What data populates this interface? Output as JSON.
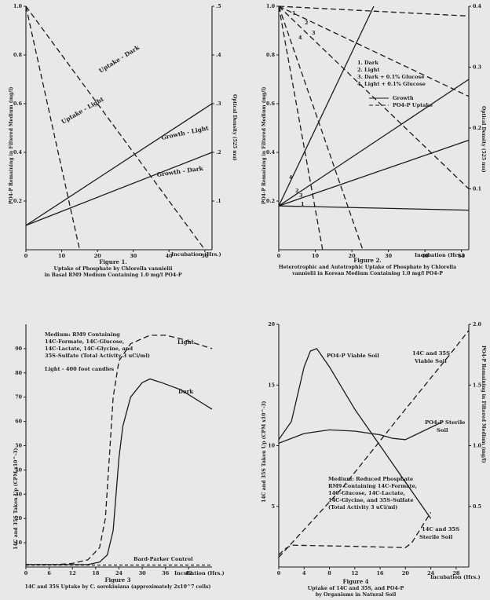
{
  "chart_data": [
    {
      "type": "line",
      "title": "Figure 1.",
      "caption": [
        "Uptake of Phosphate by Chlorella vannielii",
        "in Basal RM9 Medium Containing 1.0 mg/l PO4-P"
      ],
      "xlabel": "Incubation (Hrs.)",
      "ylabel_left": "PO4-P Remaining in Filtered Medium (mg/l)",
      "ylabel_right": "Optical Density (525 mu)",
      "xlim": [
        0,
        52
      ],
      "ylim_left": [
        0,
        1.0
      ],
      "ylim_right": [
        0,
        0.5
      ],
      "x_ticks": [
        "0",
        "10",
        "20",
        "30",
        "40",
        "50"
      ],
      "y_ticks_left": [
        "0.2",
        "0.4",
        "0.6",
        "0.8",
        "1.0"
      ],
      "y_ticks_right": [
        ".1",
        ".2",
        ".3",
        ".4",
        ".5"
      ],
      "series": [
        {
          "name": "Uptake - Dark",
          "style": "dashed",
          "axis": "left",
          "points": [
            [
              0,
              1.0
            ],
            [
              50,
              0.0
            ]
          ]
        },
        {
          "name": "Uptake - Light",
          "style": "dashed",
          "axis": "left",
          "points": [
            [
              0,
              1.0
            ],
            [
              15,
              0.0
            ]
          ]
        },
        {
          "name": "Growth - Light",
          "style": "solid",
          "axis": "right",
          "points": [
            [
              0,
              0.05
            ],
            [
              52,
              0.3
            ]
          ]
        },
        {
          "name": "Growth - Dark",
          "style": "solid",
          "axis": "right",
          "points": [
            [
              0,
              0.05
            ],
            [
              52,
              0.2
            ]
          ]
        }
      ]
    },
    {
      "type": "line",
      "title": "Figure 2.",
      "caption": [
        "Heterotrophic and Autotrophic Uptake of Phosphate by Chlorella",
        "vannielii in Korean Medium Containing 1.0 mg/l PO4-P"
      ],
      "xlabel": "Incubation (Hrs.)",
      "ylabel_left": "PO4-P Remaining in Filtered Medium (mg/l)",
      "ylabel_right": "Optical Density (525 mu)",
      "xlim": [
        0,
        52
      ],
      "ylim_left": [
        0,
        1.0
      ],
      "ylim_right": [
        0,
        0.4
      ],
      "x_ticks": [
        "0",
        "10",
        "20",
        "30",
        "40",
        "50"
      ],
      "y_ticks_left": [
        "0.2",
        "0.4",
        "0.6",
        "0.8",
        "1.0"
      ],
      "y_ticks_right": [
        "0.1",
        "0.2",
        "0.3",
        "0.4"
      ],
      "legend_items": [
        "1.  Dark",
        "2.  Light",
        "3.  Dark + 0.1% Glucose",
        "4.  Light + 0.1% Glucose"
      ],
      "legend_styles": [
        "Growth",
        "PO4-P Uptake"
      ],
      "series": [
        {
          "name": "1",
          "style": "solid",
          "axis": "right",
          "points": [
            [
              0,
              0.072
            ],
            [
              52,
              0.065
            ]
          ]
        },
        {
          "name": "2",
          "style": "solid",
          "axis": "right",
          "points": [
            [
              0,
              0.072
            ],
            [
              52,
              0.18
            ]
          ]
        },
        {
          "name": "3",
          "style": "solid",
          "axis": "right",
          "points": [
            [
              0,
              0.072
            ],
            [
              52,
              0.28
            ]
          ]
        },
        {
          "name": "4",
          "style": "solid",
          "axis": "right",
          "points": [
            [
              0,
              0.072
            ],
            [
              26,
              0.41
            ]
          ]
        },
        {
          "name": "1",
          "style": "dashed",
          "axis": "left",
          "points": [
            [
              0,
              1.0
            ],
            [
              52,
              0.96
            ]
          ]
        },
        {
          "name": "2",
          "style": "dashed",
          "axis": "left",
          "points": [
            [
              0,
              1.0
            ],
            [
              52,
              0.63
            ]
          ]
        },
        {
          "name": "3",
          "style": "dashed",
          "axis": "left",
          "points": [
            [
              0,
              1.0
            ],
            [
              52,
              0.25
            ]
          ]
        },
        {
          "name": "4",
          "style": "dashed",
          "axis": "left",
          "points": [
            [
              0,
              1.0
            ],
            [
              23,
              0.0
            ]
          ]
        },
        {
          "name": "4b",
          "style": "dashed",
          "axis": "left",
          "points": [
            [
              0,
              1.0
            ],
            [
              12,
              0.0
            ]
          ]
        }
      ],
      "point_labels": [
        "1",
        "2",
        "3",
        "4"
      ]
    },
    {
      "type": "line",
      "title": "Figure 3",
      "caption": [
        "14C and 35S Uptake by C. sorokiniana (approximately 2x10^7 cells)"
      ],
      "xlabel": "Incubation (Hrs.)",
      "ylabel": "14C and 35S Taken Up (CPM x10^-3)",
      "xlim": [
        0,
        48
      ],
      "ylim": [
        0,
        100
      ],
      "x_ticks": [
        "0",
        "6",
        "12",
        "18",
        "24",
        "30",
        "36",
        "42"
      ],
      "y_ticks": [
        "10",
        "20",
        "30",
        "40",
        "50",
        "60",
        "70",
        "80",
        "90"
      ],
      "annotations": [
        "Medium:  RM9 Containing",
        "14C-Formate, 14C-Glucose,",
        "14C-Lactate, 14C-Glycine, and",
        "35S-Sulfate (Total Activity 3 uCi/ml)",
        "Light - 400 foot candles"
      ],
      "series": [
        {
          "name": "Light",
          "style": "dashed",
          "points": [
            [
              0,
              1
            ],
            [
              8,
              1
            ],
            [
              12,
              1.5
            ],
            [
              16,
              3
            ],
            [
              19,
              8
            ],
            [
              20.5,
              20
            ],
            [
              21.5,
              45
            ],
            [
              22.5,
              70
            ],
            [
              24,
              85
            ],
            [
              27,
              92
            ],
            [
              32,
              95.5
            ],
            [
              36,
              95.5
            ],
            [
              40,
              94
            ],
            [
              44,
              92
            ],
            [
              48,
              90
            ]
          ]
        },
        {
          "name": "Dark",
          "style": "solid",
          "points": [
            [
              0,
              1
            ],
            [
              16,
              1
            ],
            [
              19,
              2
            ],
            [
              21,
              5
            ],
            [
              22.5,
              15
            ],
            [
              24,
              45
            ],
            [
              25,
              58
            ],
            [
              27,
              70
            ],
            [
              30,
              76
            ],
            [
              32,
              77.5
            ],
            [
              35,
              76
            ],
            [
              40,
              73
            ],
            [
              44,
              69
            ],
            [
              48,
              65
            ]
          ]
        },
        {
          "name": "Bard-Parker Control",
          "style": "dashed",
          "points": [
            [
              0,
              0.8
            ],
            [
              48,
              0.8
            ]
          ]
        }
      ]
    },
    {
      "type": "line",
      "title": "Figure 4",
      "caption": [
        "Uptake of 14C and 35S, and PO4-P",
        "by Organisms in Natural Soil"
      ],
      "xlabel": "Incubation (Hrs.)",
      "ylabel_left": "14C and 35S Taken Up (CPM x10^-3)",
      "ylabel_right": "PO4-P Remaining in Filtered Medium (mg/l)",
      "xlim": [
        0,
        30
      ],
      "ylim_left": [
        0,
        20
      ],
      "ylim_right": [
        0,
        2.0
      ],
      "x_ticks": [
        "0",
        "4",
        "8",
        "12",
        "16",
        "20",
        "24",
        "28"
      ],
      "y_ticks_left": [
        "5",
        "10",
        "15",
        "20"
      ],
      "y_ticks_right": [
        "0.5",
        "1.0",
        "1.5",
        "2.0"
      ],
      "annotations": [
        "Medium:  Reduced Phosphate",
        "RM9 Containing 14C-Formate,",
        "14C-Glucose, 14C-Lactate,",
        "14C-Glycine, and 35S-Sulfate",
        "(Total Activity 3 uCi/ml)"
      ],
      "series": [
        {
          "name": "PO4-P Viable Soil",
          "style": "solid",
          "points": [
            [
              0,
              10.5
            ],
            [
              2,
              12
            ],
            [
              4,
              16.5
            ],
            [
              5,
              17.8
            ],
            [
              6,
              18
            ],
            [
              8,
              16.5
            ],
            [
              12,
              13
            ],
            [
              16,
              10
            ],
            [
              20,
              7
            ],
            [
              24,
              4
            ]
          ]
        },
        {
          "name": "PO4-P Sterile Soil",
          "style": "solid",
          "points": [
            [
              0,
              10.2
            ],
            [
              4,
              11
            ],
            [
              8,
              11.3
            ],
            [
              12,
              11.2
            ],
            [
              16,
              10.9
            ],
            [
              18,
              10.6
            ],
            [
              20,
              10.5
            ],
            [
              22,
              11
            ],
            [
              26,
              12
            ]
          ]
        },
        {
          "name": "14C and 35S Viable Soil",
          "style": "dashed",
          "points": [
            [
              0,
              0.8
            ],
            [
              10,
              6.5
            ],
            [
              20,
              13
            ],
            [
              27,
              17.5
            ],
            [
              30,
              19.5
            ]
          ]
        },
        {
          "name": "14C and 35S Sterile Soil",
          "style": "dashed",
          "points": [
            [
              0,
              1
            ],
            [
              1,
              1.5
            ],
            [
              2,
              1.8
            ],
            [
              12,
              1.7
            ],
            [
              20,
              1.6
            ],
            [
              21,
              2
            ],
            [
              24,
              4.5
            ]
          ]
        }
      ]
    }
  ],
  "fig1": {
    "labels": {
      "uptake_dark": "Uptake - Dark",
      "uptake_light": "Uptake - Light",
      "growth_light": "Growth - Light",
      "growth_dark": "Growth - Dark"
    },
    "xlabel": "Incubation (Hrs.)",
    "ylabel_left": "PO4-P Remaining in Filtered Medium (mg/l)",
    "ylabel_right": "Optical Density (525 mu)",
    "caption_title": "Figure 1.",
    "caption_1": "Uptake of Phosphate by Chlorella vannielii",
    "caption_2": "in Basal RM9 Medium Containing 1.0 mg/l PO4-P"
  },
  "fig2": {
    "legend": [
      "1.  Dark",
      "2.  Light",
      "3.  Dark + 0.1% Glucose",
      "4.  Light + 0.1% Glucose"
    ],
    "legend_growth": "Growth",
    "legend_uptake": "PO4-P Uptake",
    "xlabel": "Incubation (Hrs.)",
    "ylabel_left": "PO4-P Remaining in Filtered Medium (mg/l)",
    "ylabel_right": "Optical Density (525 mu)",
    "caption_title": "Figure 2.",
    "caption_1": "Heterotrophic and Autotrophic Uptake of Phosphate by Chlorella",
    "caption_2": "vannielii in Korean Medium Containing 1.0 mg/l PO4-P"
  },
  "fig3": {
    "medium": [
      "Medium:  RM9 Containing",
      "14C-Formate, 14C-Glucose,",
      "14C-Lactate, 14C-Glycine, and",
      "35S-Sulfate (Total Activity 3 uCi/ml)"
    ],
    "light_note": "Light - 400 foot candles",
    "label_light": "Light",
    "label_dark": "Dark",
    "label_control": "Bard-Parker Control",
    "xlabel": "Incubation (Hrs.)",
    "ylabel": "14C and 35S Taken Up (CPM x10^-3)",
    "caption_title": "Figure 3",
    "caption_1": "14C and 35S Uptake by C. sorokiniana (approximately 2x10^7 cells)"
  },
  "fig4": {
    "label_po4_viable": "PO4-P Viable Soil",
    "label_14c_viable_1": "14C and 35S",
    "label_14c_viable_2": "Viable Soil",
    "label_po4_sterile_1": "PO4-P Sterile",
    "label_po4_sterile_2": "Soil",
    "label_14c_sterile_1": "14C and 35S",
    "label_14c_sterile_2": "Sterile Soil",
    "medium": [
      "Medium:  Reduced Phosphate",
      "RM9 Containing 14C-Formate,",
      "14C-Glucose, 14C-Lactate,",
      "14C-Glycine, and 35S-Sulfate",
      "(Total Activity 3 uCi/ml)"
    ],
    "xlabel": "Incubation (Hrs.)",
    "ylabel_left": "14C and 35S Taken Up (CPM x10^-3)",
    "ylabel_right": "PO4-P Remaining in Filtered Medium (mg/l)",
    "caption_title": "Figure 4",
    "caption_1": "Uptake of 14C and 35S, and PO4-P",
    "caption_2": "by Organisms in Natural Soil"
  },
  "colors": {
    "ink": "#1c1c1c",
    "paper": "#e8e8e6"
  }
}
